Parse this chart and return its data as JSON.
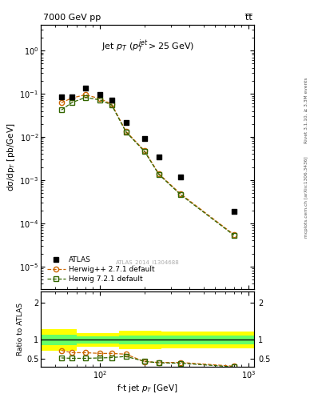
{
  "title_left": "7000 GeV pp",
  "title_right": "t̅t̅",
  "panel_title": "Jet p$_T$ (p$_T^{jet}$>25 GeV)",
  "ylabel_main": "dσ/dp$_T$ [pb/GeV]",
  "ylabel_ratio": "Ratio to ATLAS",
  "xlabel": "f̂t jet p$_T$ [GeV]",
  "watermark": "ATLAS_2014_I1304688",
  "rivet_label": "Rivet 3.1.10, ≥ 3.3M events",
  "mcplots_label": "mcplots.cern.ch [arXiv:1306.3436]",
  "atlas_x": [
    55,
    65,
    80,
    100,
    120,
    150,
    200,
    250,
    350,
    800
  ],
  "atlas_y": [
    0.085,
    0.085,
    0.135,
    0.095,
    0.07,
    0.022,
    0.009,
    0.0035,
    0.0012,
    0.00019
  ],
  "herwig1_x": [
    55,
    65,
    80,
    100,
    120,
    150,
    200,
    250,
    350,
    800
  ],
  "herwig1_y": [
    0.062,
    0.08,
    0.095,
    0.077,
    0.058,
    0.0135,
    0.0048,
    0.0014,
    0.00048,
    5.5e-05
  ],
  "herwig1_color": "#cc6600",
  "herwig1_label": "Herwig++ 2.7.1 default",
  "herwig2_x": [
    55,
    65,
    80,
    100,
    120,
    150,
    200,
    250,
    350,
    800
  ],
  "herwig2_y": [
    0.042,
    0.063,
    0.082,
    0.072,
    0.055,
    0.013,
    0.0046,
    0.00135,
    0.00046,
    5.3e-05
  ],
  "herwig2_color": "#336600",
  "herwig2_label": "Herwig 7.2.1 default",
  "ratio_herwig1_x": [
    55,
    65,
    80,
    100,
    120,
    150,
    200,
    250,
    350,
    800
  ],
  "ratio_herwig1": [
    0.72,
    0.66,
    0.66,
    0.64,
    0.64,
    0.62,
    0.42,
    0.4,
    0.4,
    0.3
  ],
  "ratio_herwig2_x": [
    55,
    65,
    80,
    100,
    120,
    150,
    200,
    250,
    350,
    800
  ],
  "ratio_herwig2": [
    0.52,
    0.51,
    0.51,
    0.52,
    0.53,
    0.56,
    0.43,
    0.39,
    0.38,
    0.28
  ],
  "band_x_edges": [
    40,
    70,
    135,
    260,
    1100
  ],
  "yellow_band_low": [
    0.72,
    0.82,
    0.75,
    0.78,
    0.78
  ],
  "yellow_band_high": [
    1.28,
    1.18,
    1.25,
    1.22,
    1.22
  ],
  "green_band_low": [
    0.87,
    0.91,
    0.88,
    0.88,
    0.88
  ],
  "green_band_high": [
    1.13,
    1.09,
    1.12,
    1.12,
    1.12
  ],
  "xlim": [
    40,
    1100
  ],
  "ylim_main": [
    3e-06,
    4.0
  ],
  "ylim_ratio": [
    0.28,
    2.3
  ]
}
